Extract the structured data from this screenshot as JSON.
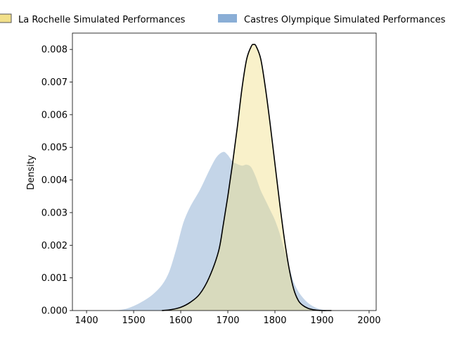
{
  "chart_data": {
    "type": "area",
    "title": "",
    "xlabel": "",
    "ylabel": "Density",
    "xlim": [
      1370,
      2015
    ],
    "ylim": [
      0,
      0.0085
    ],
    "xticks": [
      1400,
      1500,
      1600,
      1700,
      1800,
      1900,
      2000
    ],
    "yticks": [
      0.0,
      0.001,
      0.002,
      0.003,
      0.004,
      0.005,
      0.006,
      0.007,
      0.008
    ],
    "ytick_labels": [
      "0.000",
      "0.001",
      "0.002",
      "0.003",
      "0.004",
      "0.005",
      "0.006",
      "0.007",
      "0.008"
    ],
    "grid": false,
    "legend_placement": "top, above plot, horizontal",
    "legend": [
      {
        "label": "La Rochelle Simulated Performances",
        "color": "#f2e08a"
      },
      {
        "label": "Castres Olympique Simulated Performances",
        "color": "#8aaed6"
      }
    ],
    "series": [
      {
        "name": "Castres Olympique Simulated Performances",
        "fill": "#c4d5e8",
        "stroke": "#ffffff",
        "x": [
          1440,
          1460,
          1480,
          1500,
          1520,
          1540,
          1560,
          1575,
          1590,
          1605,
          1620,
          1640,
          1660,
          1675,
          1690,
          1700,
          1710,
          1720,
          1730,
          1740,
          1750,
          1760,
          1770,
          1780,
          1790,
          1800,
          1810,
          1820,
          1830,
          1840,
          1850,
          1860,
          1870,
          1880,
          1890,
          1900,
          1910,
          1920,
          1935,
          1950
        ],
        "y": [
          0.0,
          1e-05,
          5e-05,
          0.00015,
          0.0003,
          0.0005,
          0.0008,
          0.0012,
          0.0019,
          0.0027,
          0.0032,
          0.0037,
          0.0043,
          0.0047,
          0.00487,
          0.00478,
          0.00458,
          0.0045,
          0.00445,
          0.00448,
          0.0044,
          0.0041,
          0.0037,
          0.0034,
          0.0031,
          0.0028,
          0.0024,
          0.0019,
          0.0014,
          0.0009,
          0.0006,
          0.0004,
          0.00025,
          0.00015,
          8e-05,
          4e-05,
          2e-05,
          1e-05,
          0.0,
          0.0
        ]
      },
      {
        "name": "La Rochelle Simulated Performances",
        "fill": "#f2e08a",
        "fill_opacity": 0.45,
        "stroke": "#000000",
        "x": [
          1560,
          1580,
          1600,
          1620,
          1640,
          1660,
          1680,
          1690,
          1700,
          1710,
          1720,
          1730,
          1740,
          1750,
          1755,
          1760,
          1770,
          1780,
          1790,
          1800,
          1810,
          1820,
          1830,
          1840,
          1850,
          1860,
          1870,
          1880,
          1890,
          1900,
          1910,
          1920
        ],
        "y": [
          0.0,
          3e-05,
          0.0001,
          0.00025,
          0.0005,
          0.001,
          0.0018,
          0.0026,
          0.0035,
          0.0045,
          0.0056,
          0.0068,
          0.0077,
          0.0081,
          0.00815,
          0.0081,
          0.0077,
          0.0068,
          0.0057,
          0.0045,
          0.0033,
          0.0022,
          0.0013,
          0.00065,
          0.0003,
          0.00015,
          7e-05,
          3e-05,
          1e-05,
          0.0,
          0.0,
          0.0
        ]
      }
    ]
  }
}
